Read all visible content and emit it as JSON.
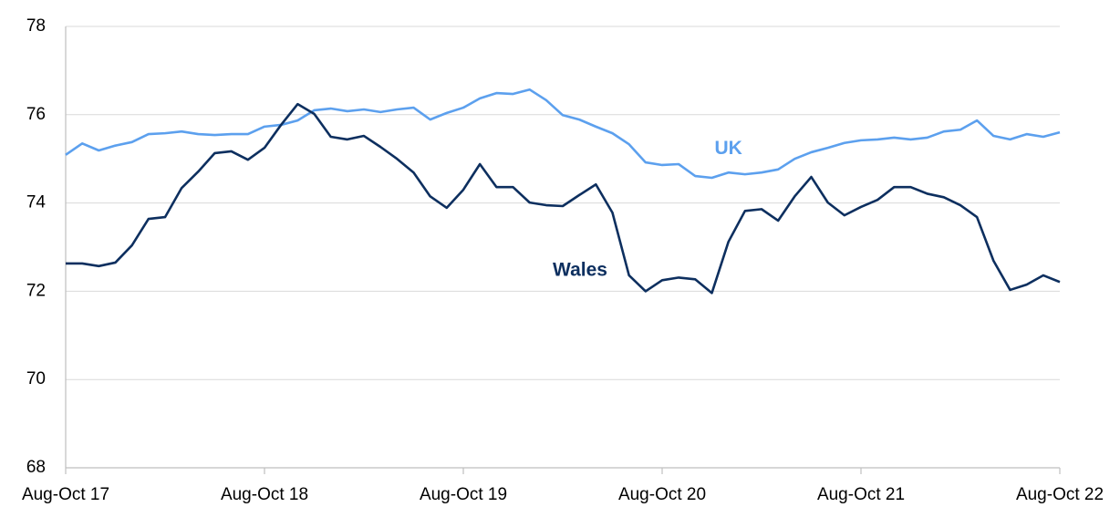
{
  "chart_data": {
    "type": "line",
    "categories": [
      "Aug-Oct 17",
      null,
      null,
      null,
      null,
      null,
      null,
      null,
      null,
      null,
      null,
      null,
      "Aug-Oct 18",
      null,
      null,
      null,
      null,
      null,
      null,
      null,
      null,
      null,
      null,
      null,
      "Aug-Oct 19",
      null,
      null,
      null,
      null,
      null,
      null,
      null,
      null,
      null,
      null,
      null,
      "Aug-Oct 20",
      null,
      null,
      null,
      null,
      null,
      null,
      null,
      null,
      null,
      null,
      null,
      "Aug-Oct 21",
      null,
      null,
      null,
      null,
      null,
      null,
      null,
      null,
      null,
      null,
      null,
      "Aug-Oct 22"
    ],
    "series": [
      {
        "name": "UK",
        "color": "#5ca0ee",
        "values": [
          75.09,
          75.35,
          75.19,
          75.3,
          75.38,
          75.56,
          75.58,
          75.62,
          75.56,
          75.54,
          75.56,
          75.56,
          75.73,
          75.77,
          75.87,
          76.1,
          76.14,
          76.08,
          76.12,
          76.06,
          76.12,
          76.16,
          75.89,
          76.04,
          76.16,
          76.37,
          76.49,
          76.47,
          76.57,
          76.33,
          75.99,
          75.89,
          75.73,
          75.58,
          75.33,
          74.92,
          74.86,
          74.88,
          74.61,
          74.57,
          74.69,
          74.65,
          74.69,
          74.76,
          75.0,
          75.15,
          75.25,
          75.36,
          75.42,
          75.44,
          75.48,
          75.44,
          75.48,
          75.62,
          75.66,
          75.87,
          75.52,
          75.44,
          75.56,
          75.5,
          75.6
        ]
      },
      {
        "name": "Wales",
        "color": "#0d2f5f",
        "values": [
          72.63,
          72.63,
          72.57,
          72.65,
          73.04,
          73.64,
          73.68,
          74.34,
          74.71,
          75.13,
          75.17,
          74.98,
          75.25,
          75.77,
          76.24,
          76.02,
          75.5,
          75.44,
          75.52,
          75.27,
          75.0,
          74.69,
          74.15,
          73.89,
          74.3,
          74.88,
          74.36,
          74.36,
          74.01,
          73.95,
          73.93,
          74.18,
          74.42,
          73.78,
          72.36,
          72.0,
          72.25,
          72.31,
          72.27,
          71.96,
          73.12,
          73.82,
          73.86,
          73.6,
          74.15,
          74.59,
          74.01,
          73.72,
          73.91,
          74.07,
          74.36,
          74.36,
          74.21,
          74.13,
          73.95,
          73.68,
          72.69,
          72.03,
          72.15,
          72.36,
          72.21
        ]
      }
    ],
    "ylim": [
      68,
      78
    ],
    "yticks": [
      68,
      70,
      72,
      74,
      76,
      78
    ],
    "grid": true
  }
}
